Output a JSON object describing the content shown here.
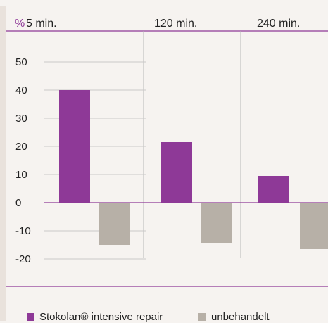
{
  "chart_data": {
    "type": "bar",
    "y_unit_label": "%",
    "categories": [
      "5 min.",
      "120 min.",
      "240 min."
    ],
    "series": [
      {
        "name": "Stokolan® intensive repair",
        "color": "#8e3997",
        "values": [
          40,
          21.5,
          9.5
        ]
      },
      {
        "name": "unbehandelt",
        "color": "#b7b0a7",
        "values": [
          -15,
          -14.5,
          -16.5
        ]
      }
    ],
    "y_ticks": [
      "50",
      "40",
      "30",
      "20",
      "10",
      "0",
      "-10",
      "-20"
    ],
    "ylim": [
      -20,
      50
    ],
    "grid": false,
    "legend_position": "bottom-left"
  },
  "colors": {
    "accent_line": "#8e3997",
    "divider": "#b8b8b8",
    "tick_line": "#c9c9c9",
    "axis_text": "#222222",
    "unit_text": "#8e3997"
  }
}
